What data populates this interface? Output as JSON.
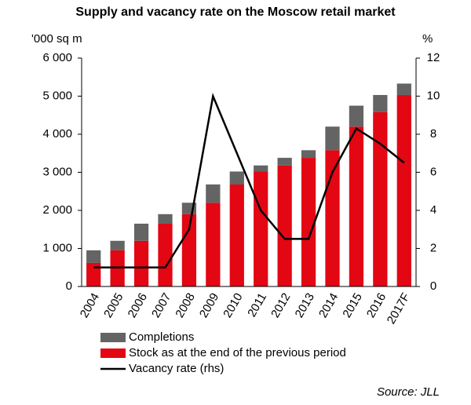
{
  "chart_data": {
    "type": "bar",
    "stacked": true,
    "title": "Supply and vacancy rate on the Moscow retail market",
    "y_label": "'000 sq m",
    "y2_label": "%",
    "source": "Source: JLL",
    "categories": [
      "2004",
      "2005",
      "2006",
      "2007",
      "2008",
      "2009",
      "2010",
      "2011",
      "2012",
      "2013",
      "2014",
      "2015",
      "2016",
      "2017F"
    ],
    "series": [
      {
        "name": "Stock as at the end of the previous period",
        "color": "#e30613",
        "type": "bar",
        "values": [
          620,
          950,
          1200,
          1650,
          1900,
          2200,
          2680,
          3020,
          3180,
          3380,
          3580,
          4200,
          4580,
          5030
        ]
      },
      {
        "name": "Completions",
        "color": "#646464",
        "type": "bar",
        "values": [
          330,
          250,
          450,
          250,
          300,
          480,
          340,
          160,
          200,
          200,
          620,
          550,
          450,
          300
        ]
      },
      {
        "name": "Vacancy rate (rhs)",
        "color": "#000000",
        "type": "line",
        "axis": "y2",
        "values": [
          1,
          1,
          1,
          1,
          3,
          10,
          7,
          4,
          2.5,
          2.5,
          6,
          8.3,
          7.5,
          6.5
        ]
      }
    ],
    "legend_order": [
      1,
      0,
      2
    ],
    "ylim": [
      0,
      6000
    ],
    "yticks": [
      0,
      {
        "value": 1000,
        "label": "1 000"
      },
      {
        "value": 2000,
        "label": "2 000"
      },
      {
        "value": 3000,
        "label": "3 000"
      },
      {
        "value": 4000,
        "label": "4 000"
      },
      {
        "value": 5000,
        "label": "5 000"
      },
      {
        "value": 6000,
        "label": "6 000"
      }
    ],
    "y2lim": [
      0,
      12
    ],
    "y2ticks": [
      0,
      2,
      4,
      6,
      8,
      10,
      12
    ]
  }
}
